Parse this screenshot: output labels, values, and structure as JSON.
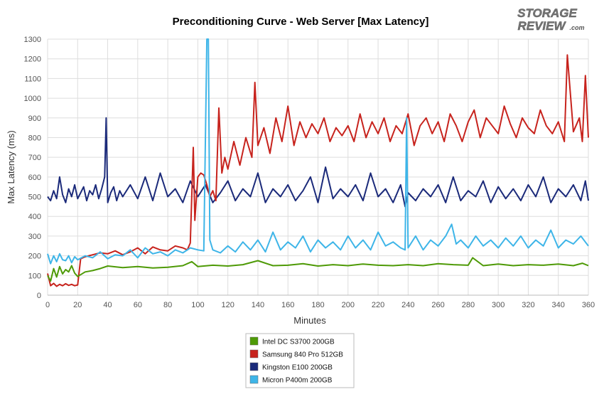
{
  "logo": {
    "line1": "STORAGE",
    "line2": "REVIEW",
    "suffix": ".com"
  },
  "chart_data": {
    "type": "line",
    "title": "Preconditioning Curve - Web Server [Max Latency]",
    "xlabel": "Minutes",
    "ylabel": "Max Latency (ms)",
    "xlim": [
      0,
      360
    ],
    "ylim": [
      0,
      1300
    ],
    "xticks": [
      0,
      20,
      40,
      60,
      80,
      100,
      120,
      140,
      160,
      180,
      200,
      220,
      240,
      260,
      280,
      300,
      320,
      340,
      360
    ],
    "yticks": [
      0,
      100,
      200,
      300,
      400,
      500,
      600,
      700,
      800,
      900,
      1000,
      1100,
      1200,
      1300
    ],
    "grid": true,
    "legend_position": "bottom-center",
    "series": [
      {
        "name": "Intel DC S3700 200GB",
        "color": "#4e9a06",
        "x": [
          0,
          2,
          4,
          6,
          8,
          10,
          12,
          14,
          16,
          18,
          20,
          25,
          30,
          35,
          40,
          50,
          60,
          70,
          80,
          90,
          96,
          100,
          110,
          120,
          130,
          140,
          150,
          160,
          170,
          180,
          190,
          200,
          210,
          220,
          230,
          240,
          250,
          260,
          270,
          280,
          283,
          290,
          300,
          310,
          320,
          330,
          340,
          350,
          356,
          360
        ],
        "y": [
          100,
          72,
          135,
          92,
          145,
          108,
          130,
          118,
          150,
          112,
          95,
          118,
          125,
          135,
          148,
          140,
          145,
          138,
          142,
          150,
          170,
          145,
          152,
          148,
          155,
          175,
          150,
          152,
          160,
          148,
          155,
          150,
          158,
          152,
          150,
          155,
          150,
          160,
          155,
          152,
          190,
          150,
          158,
          150,
          155,
          152,
          158,
          150,
          162,
          150
        ]
      },
      {
        "name": "Samsung 840 Pro 512GB",
        "color": "#c7231d",
        "x": [
          0,
          2,
          4,
          6,
          8,
          10,
          12,
          14,
          16,
          18,
          20,
          22,
          25,
          30,
          35,
          40,
          45,
          50,
          55,
          60,
          65,
          70,
          75,
          80,
          85,
          90,
          93,
          95,
          97,
          98,
          100,
          102,
          104,
          106,
          108,
          110,
          112,
          114,
          116,
          118,
          120,
          124,
          128,
          132,
          136,
          138,
          140,
          144,
          148,
          152,
          156,
          160,
          164,
          168,
          172,
          176,
          180,
          184,
          188,
          192,
          196,
          200,
          204,
          208,
          212,
          216,
          220,
          224,
          228,
          232,
          236,
          240,
          244,
          248,
          252,
          256,
          260,
          264,
          268,
          272,
          276,
          280,
          284,
          288,
          292,
          296,
          300,
          304,
          308,
          312,
          316,
          320,
          324,
          328,
          332,
          336,
          340,
          344,
          346,
          350,
          354,
          356,
          358,
          360
        ],
        "y": [
          110,
          48,
          60,
          45,
          55,
          48,
          58,
          50,
          55,
          48,
          52,
          185,
          195,
          205,
          215,
          210,
          225,
          205,
          220,
          240,
          210,
          245,
          230,
          225,
          250,
          240,
          230,
          265,
          750,
          380,
          600,
          620,
          610,
          560,
          500,
          530,
          480,
          950,
          620,
          700,
          640,
          780,
          660,
          800,
          700,
          1080,
          760,
          850,
          720,
          900,
          780,
          960,
          760,
          880,
          800,
          870,
          820,
          900,
          780,
          850,
          810,
          860,
          780,
          920,
          800,
          880,
          820,
          900,
          780,
          860,
          820,
          920,
          760,
          860,
          900,
          820,
          880,
          780,
          920,
          860,
          780,
          880,
          940,
          800,
          900,
          860,
          820,
          960,
          870,
          800,
          900,
          850,
          820,
          940,
          860,
          820,
          880,
          780,
          1220,
          830,
          900,
          780,
          1115,
          800
        ]
      },
      {
        "name": "Kingston E100 200GB",
        "color": "#1b2a7a",
        "x": [
          0,
          2,
          4,
          6,
          8,
          10,
          12,
          14,
          16,
          18,
          20,
          22,
          24,
          26,
          28,
          30,
          32,
          34,
          36,
          38,
          39,
          40,
          42,
          44,
          46,
          48,
          50,
          55,
          60,
          65,
          70,
          75,
          80,
          85,
          90,
          95,
          100,
          105,
          110,
          115,
          120,
          125,
          130,
          135,
          140,
          145,
          150,
          155,
          160,
          165,
          170,
          175,
          180,
          185,
          190,
          195,
          200,
          205,
          210,
          215,
          220,
          225,
          230,
          235,
          238,
          240,
          245,
          250,
          255,
          260,
          265,
          270,
          275,
          280,
          285,
          290,
          295,
          300,
          305,
          310,
          315,
          320,
          325,
          330,
          335,
          340,
          345,
          350,
          355,
          358,
          360
        ],
        "y": [
          500,
          480,
          530,
          490,
          600,
          510,
          470,
          540,
          500,
          560,
          490,
          520,
          550,
          480,
          530,
          510,
          560,
          490,
          540,
          600,
          900,
          470,
          520,
          550,
          480,
          530,
          500,
          560,
          490,
          600,
          480,
          620,
          500,
          540,
          470,
          580,
          500,
          560,
          470,
          520,
          580,
          480,
          540,
          500,
          620,
          470,
          540,
          500,
          560,
          480,
          530,
          600,
          470,
          650,
          490,
          540,
          500,
          560,
          480,
          620,
          500,
          540,
          470,
          560,
          450,
          520,
          480,
          540,
          500,
          560,
          470,
          600,
          480,
          530,
          500,
          580,
          470,
          550,
          490,
          540,
          480,
          560,
          500,
          600,
          470,
          540,
          500,
          560,
          480,
          580,
          480
        ]
      },
      {
        "name": "Micron P400m 200GB",
        "color": "#3eb5e8",
        "x": [
          0,
          2,
          4,
          6,
          8,
          10,
          12,
          14,
          16,
          18,
          20,
          25,
          30,
          35,
          40,
          45,
          50,
          55,
          60,
          65,
          70,
          75,
          80,
          85,
          90,
          95,
          100,
          104,
          106,
          107,
          108,
          110,
          115,
          120,
          125,
          130,
          135,
          140,
          145,
          150,
          155,
          160,
          165,
          170,
          175,
          180,
          185,
          190,
          195,
          200,
          205,
          210,
          215,
          220,
          225,
          230,
          235,
          238,
          239,
          240,
          245,
          250,
          255,
          260,
          265,
          269,
          272,
          275,
          280,
          285,
          290,
          295,
          300,
          305,
          310,
          315,
          320,
          325,
          330,
          335,
          340,
          345,
          350,
          355,
          360
        ],
        "y": [
          210,
          160,
          200,
          170,
          210,
          180,
          175,
          200,
          165,
          195,
          180,
          200,
          190,
          220,
          185,
          205,
          200,
          230,
          190,
          240,
          210,
          220,
          200,
          230,
          215,
          240,
          230,
          225,
          1300,
          1300,
          280,
          230,
          215,
          250,
          220,
          270,
          230,
          280,
          220,
          320,
          230,
          270,
          240,
          300,
          220,
          280,
          240,
          270,
          230,
          300,
          240,
          280,
          230,
          320,
          250,
          270,
          240,
          230,
          900,
          240,
          300,
          230,
          280,
          250,
          300,
          360,
          260,
          280,
          240,
          300,
          250,
          280,
          240,
          290,
          250,
          300,
          240,
          280,
          250,
          330,
          240,
          280,
          260,
          300,
          250
        ]
      }
    ]
  }
}
